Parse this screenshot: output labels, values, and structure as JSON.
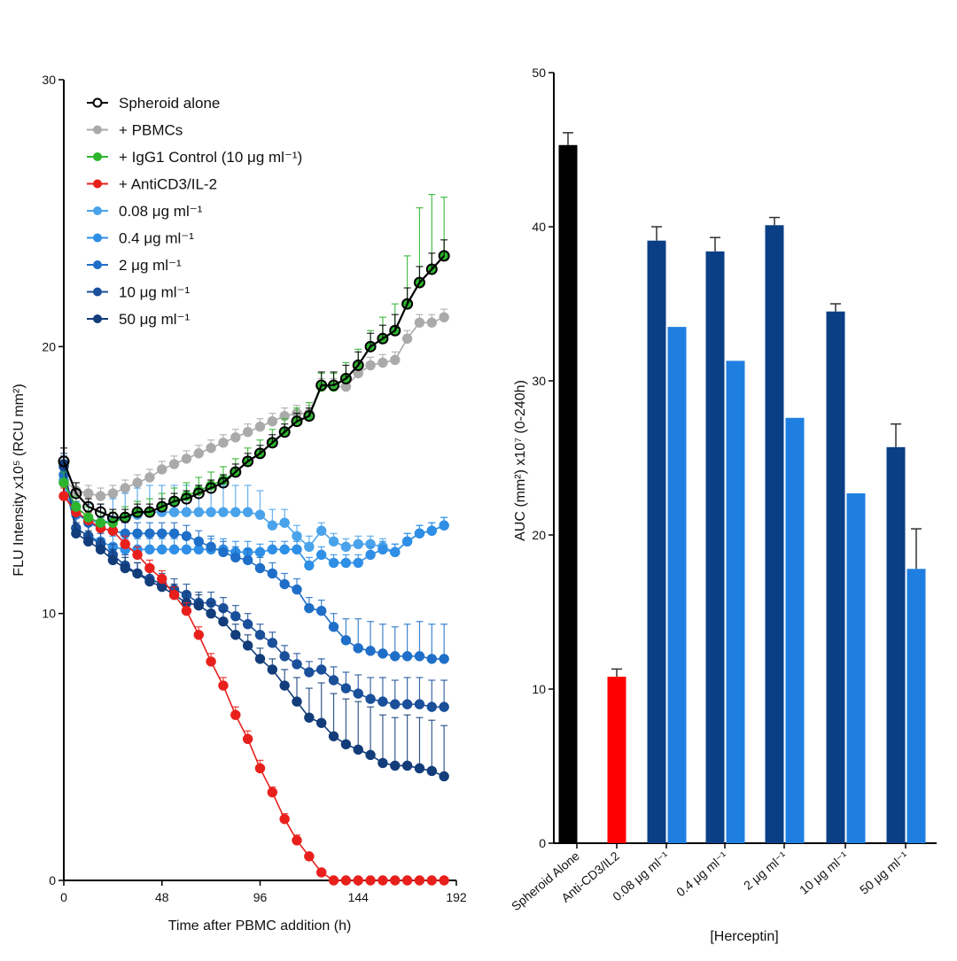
{
  "chart_data": [
    {
      "type": "line",
      "xlabel": "Time after PBMC addition (h)",
      "ylabel": "FLU Intensity x10⁵ (RCU mm²)",
      "xlim": [
        0,
        192
      ],
      "ylim": [
        0,
        30
      ],
      "xticks": [
        0,
        48,
        96,
        144,
        192
      ],
      "yticks": [
        0,
        10,
        20,
        30
      ],
      "grid": false,
      "legend_position": "top-left",
      "x": [
        0,
        6,
        12,
        18,
        24,
        30,
        36,
        42,
        48,
        54,
        60,
        66,
        72,
        78,
        84,
        90,
        96,
        102,
        108,
        114,
        120,
        126,
        132,
        138,
        144,
        150,
        156,
        162,
        168,
        174,
        180,
        186
      ],
      "series": [
        {
          "name": "Spheroid alone",
          "color": "#000000",
          "hollow": true,
          "values": [
            15.7,
            14.5,
            14.0,
            13.8,
            13.6,
            13.6,
            13.8,
            13.8,
            14.0,
            14.2,
            14.3,
            14.5,
            14.7,
            14.9,
            15.3,
            15.7,
            16.0,
            16.4,
            16.8,
            17.2,
            17.4,
            18.55,
            18.55,
            18.8,
            19.3,
            20.0,
            20.3,
            20.6,
            21.6,
            22.4,
            22.9,
            23.4
          ],
          "err": [
            0.5,
            0.4,
            0.3,
            0.3,
            0.3,
            0.3,
            0.3,
            0.3,
            0.3,
            0.3,
            0.3,
            0.3,
            0.3,
            0.3,
            0.3,
            0.3,
            0.3,
            0.3,
            0.3,
            0.3,
            0.3,
            0.5,
            0.5,
            0.5,
            0.5,
            0.5,
            0.5,
            0.6,
            0.6,
            0.6,
            0.6,
            0.6
          ]
        },
        {
          "name": "+ PBMCs",
          "color": "#aaaaaa",
          "values": [
            15.0,
            14.6,
            14.5,
            14.4,
            14.5,
            14.7,
            14.9,
            15.1,
            15.4,
            15.6,
            15.8,
            16.0,
            16.2,
            16.4,
            16.6,
            16.8,
            17.0,
            17.2,
            17.4,
            17.5,
            17.5,
            18.5,
            18.5,
            18.5,
            19.0,
            19.3,
            19.4,
            19.5,
            20.3,
            20.9,
            20.9,
            21.1
          ],
          "err": [
            0.3,
            0.3,
            0.3,
            0.3,
            0.3,
            0.3,
            0.3,
            0.3,
            0.3,
            0.3,
            0.3,
            0.3,
            0.3,
            0.3,
            0.3,
            0.3,
            0.3,
            0.3,
            0.3,
            0.3,
            0.3,
            0.3,
            0.3,
            0.3,
            0.3,
            0.3,
            0.3,
            0.3,
            0.3,
            0.3,
            0.3,
            0.3
          ]
        },
        {
          "name": "+ IgG1 Control (10 μg ml⁻¹)",
          "color": "#2db52d",
          "values": [
            14.9,
            14.0,
            13.6,
            13.4,
            13.4,
            13.6,
            13.8,
            13.8,
            14.0,
            14.2,
            14.4,
            14.6,
            14.8,
            15.0,
            15.3,
            15.7,
            16.0,
            16.4,
            16.8,
            17.2,
            17.4,
            18.5,
            18.5,
            18.8,
            19.3,
            20.0,
            20.3,
            20.6,
            21.6,
            22.4,
            22.9,
            23.4
          ],
          "err": [
            0.4,
            0.4,
            0.4,
            0.4,
            0.4,
            0.4,
            0.4,
            0.5,
            0.5,
            0.5,
            0.5,
            0.5,
            0.5,
            0.5,
            0.5,
            0.5,
            0.5,
            0.5,
            0.5,
            0.5,
            0.5,
            0.5,
            0.5,
            0.6,
            0.6,
            0.6,
            0.8,
            1.0,
            1.8,
            2.8,
            2.8,
            2.2
          ]
        },
        {
          "name": "+ AntiCD3/IL-2",
          "color": "#e8201c",
          "values": [
            14.4,
            13.8,
            13.5,
            13.2,
            13.1,
            12.6,
            12.2,
            11.7,
            11.3,
            10.7,
            10.1,
            9.2,
            8.2,
            7.3,
            6.2,
            5.3,
            4.2,
            3.3,
            2.3,
            1.5,
            0.9,
            0.3,
            0,
            0,
            0,
            0,
            0,
            0,
            0,
            0,
            0,
            0
          ],
          "err": [
            0.3,
            0.3,
            0.3,
            0.3,
            0.3,
            0.3,
            0.3,
            0.3,
            0.3,
            0.3,
            0.3,
            0.3,
            0.3,
            0.3,
            0.3,
            0.3,
            0.3,
            0.2,
            0.2,
            0.2,
            0.1,
            0.1,
            0,
            0,
            0,
            0,
            0,
            0,
            0,
            0,
            0,
            0
          ]
        },
        {
          "name": "0.08 μg ml⁻¹",
          "color": "#4aa3ea",
          "values": [
            15.0,
            13.7,
            13.5,
            13.4,
            13.5,
            13.6,
            13.7,
            13.8,
            13.8,
            13.8,
            13.8,
            13.8,
            13.8,
            13.8,
            13.8,
            13.8,
            13.7,
            13.3,
            13.4,
            12.9,
            12.5,
            13.1,
            12.7,
            12.5,
            12.6,
            12.6,
            12.5,
            12.3,
            12.7,
            13.0,
            13.1,
            13.3
          ],
          "err": [
            0.4,
            0.5,
            0.6,
            0.7,
            0.8,
            0.9,
            1.0,
            1.0,
            1.0,
            1.0,
            1.0,
            1.0,
            1.0,
            1.0,
            1.0,
            1.0,
            0.9,
            0.6,
            0.5,
            0.4,
            0.4,
            0.3,
            0.3,
            0.3,
            0.3,
            0.3,
            0.3,
            0.3,
            0.3,
            0.3,
            0.3,
            0.3
          ]
        },
        {
          "name": "0.4 μg ml⁻¹",
          "color": "#2f8fe6",
          "values": [
            14.9,
            13.2,
            12.9,
            12.7,
            12.5,
            12.4,
            12.4,
            12.4,
            12.4,
            12.4,
            12.4,
            12.4,
            12.4,
            12.4,
            12.3,
            12.3,
            12.3,
            12.4,
            12.4,
            12.4,
            11.8,
            12.2,
            11.9,
            11.9,
            11.9,
            12.2,
            12.4,
            12.3,
            12.7,
            13.0,
            13.1,
            13.3
          ],
          "err": [
            0.3,
            0.4,
            0.4,
            0.4,
            0.4,
            0.4,
            0.4,
            0.4,
            0.4,
            0.4,
            0.4,
            0.4,
            0.4,
            0.4,
            0.4,
            0.4,
            0.3,
            0.3,
            0.3,
            0.3,
            0.3,
            0.3,
            0.3,
            0.3,
            0.3,
            0.3,
            0.3,
            0.3,
            0.3,
            0.3,
            0.3,
            0.3
          ]
        },
        {
          "name": "2 μg ml⁻¹",
          "color": "#1f6fc8",
          "values": [
            15.2,
            13.8,
            13.4,
            13.2,
            13.1,
            13.0,
            13.0,
            13.0,
            13.0,
            13.0,
            12.9,
            12.7,
            12.5,
            12.3,
            12.1,
            12.0,
            11.7,
            11.5,
            11.1,
            10.9,
            10.2,
            10.1,
            9.5,
            9.0,
            8.7,
            8.6,
            8.5,
            8.4,
            8.4,
            8.4,
            8.3,
            8.3
          ],
          "err": [
            0.4,
            0.4,
            0.4,
            0.4,
            0.4,
            0.4,
            0.4,
            0.4,
            0.4,
            0.4,
            0.4,
            0.4,
            0.4,
            0.4,
            0.4,
            0.4,
            0.4,
            0.4,
            0.4,
            0.4,
            0.4,
            0.4,
            0.5,
            0.8,
            1.1,
            1.1,
            1.1,
            1.1,
            1.2,
            1.3,
            1.3,
            1.3
          ]
        },
        {
          "name": "10 μg ml⁻¹",
          "color": "#1a4f9a",
          "values": [
            15.5,
            13.2,
            12.9,
            12.6,
            12.2,
            11.8,
            11.5,
            11.3,
            11.1,
            10.9,
            10.7,
            10.4,
            10.4,
            10.2,
            9.9,
            9.6,
            9.2,
            8.9,
            8.4,
            8.1,
            7.8,
            7.9,
            7.5,
            7.2,
            7.0,
            6.8,
            6.7,
            6.6,
            6.6,
            6.6,
            6.5,
            6.5
          ],
          "err": [
            0.4,
            0.4,
            0.4,
            0.4,
            0.4,
            0.4,
            0.4,
            0.4,
            0.4,
            0.4,
            0.4,
            0.4,
            0.4,
            0.4,
            0.4,
            0.4,
            0.4,
            0.4,
            0.4,
            0.4,
            0.4,
            0.4,
            0.5,
            0.6,
            0.7,
            0.8,
            0.9,
            0.9,
            1.0,
            1.0,
            1.0,
            1.0
          ]
        },
        {
          "name": "50 μg ml⁻¹",
          "color": "#123d7a",
          "values": [
            15.6,
            13.0,
            12.7,
            12.4,
            12.0,
            11.7,
            11.5,
            11.2,
            11.0,
            10.7,
            10.4,
            10.3,
            10.0,
            9.7,
            9.2,
            8.8,
            8.3,
            7.9,
            7.3,
            6.7,
            6.1,
            5.9,
            5.4,
            5.1,
            4.9,
            4.7,
            4.4,
            4.3,
            4.3,
            4.2,
            4.1,
            3.9
          ],
          "err": [
            0.4,
            0.4,
            0.4,
            0.4,
            0.4,
            0.4,
            0.4,
            0.4,
            0.4,
            0.4,
            0.4,
            0.4,
            0.4,
            0.4,
            0.4,
            0.4,
            0.4,
            0.4,
            0.6,
            0.9,
            1.1,
            1.5,
            1.6,
            1.7,
            1.8,
            1.8,
            1.8,
            1.8,
            1.9,
            1.9,
            1.9,
            1.9
          ]
        }
      ]
    },
    {
      "type": "bar",
      "xlabel": "[Herceptin]",
      "ylabel": "AUC (mm²) x10⁷ (0-240h)",
      "ylim": [
        0,
        50
      ],
      "yticks": [
        0,
        10,
        20,
        30,
        40,
        50
      ],
      "grid": false,
      "categories": [
        "Spheroid Alone",
        "Anti-CD3/IL2",
        "0.08 μg ml⁻¹",
        "0.4 μg ml⁻¹",
        "2 μg ml⁻¹",
        "10 μg ml⁻¹",
        "50 μg ml⁻¹"
      ],
      "colors": {
        "spheroid": "#000000",
        "anti_cd3": "#ff0000",
        "dark": "#0a3f86",
        "light": "#1f7fe0"
      },
      "series": [
        {
          "values": [
            45.3,
            10.8,
            39.1,
            38.4,
            40.1,
            34.5,
            25.7
          ],
          "err": [
            0.8,
            0.5,
            0.9,
            0.9,
            0.5,
            0.5,
            1.5
          ]
        },
        {
          "values": [
            null,
            null,
            33.5,
            31.3,
            27.6,
            22.7,
            17.8
          ],
          "err": [
            null,
            null,
            0,
            0,
            0,
            0,
            2.6
          ]
        }
      ]
    }
  ]
}
